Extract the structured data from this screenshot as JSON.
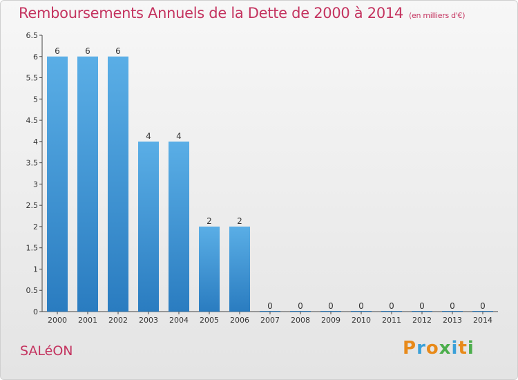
{
  "header": {
    "title": "Remboursements Annuels de la Dette de 2000 à 2014",
    "subtitle": "(en milliers d'€)"
  },
  "footer": {
    "place": "SALéON",
    "logo": "Proxiti"
  },
  "colors": {
    "title": "#c4335f",
    "bar_top": "#5aaee6",
    "bar_bottom": "#2a7cc0"
  },
  "chart_data": {
    "type": "bar",
    "title": "Remboursements Annuels de la Dette de 2000 à 2014",
    "subtitle": "(en milliers d'€)",
    "xlabel": "",
    "ylabel": "",
    "categories": [
      "2000",
      "2001",
      "2002",
      "2003",
      "2004",
      "2005",
      "2006",
      "2007",
      "2008",
      "2009",
      "2010",
      "2011",
      "2012",
      "2013",
      "2014"
    ],
    "values": [
      6,
      6,
      6,
      4,
      4,
      2,
      2,
      0,
      0,
      0,
      0,
      0,
      0,
      0,
      0
    ],
    "data_labels": [
      "6",
      "6",
      "6",
      "4",
      "4",
      "2",
      "2",
      "0",
      "0",
      "0",
      "0",
      "0",
      "0",
      "0",
      "0"
    ],
    "ylim": [
      0,
      6.5
    ],
    "yticks": [
      0,
      0.5,
      1,
      1.5,
      2,
      2.5,
      3,
      3.5,
      4,
      4.5,
      5,
      5.5,
      6,
      6.5
    ],
    "ytick_labels": [
      "0",
      "0.5",
      "1",
      "1.5",
      "2",
      "2.5",
      "3",
      "3.5",
      "4",
      "4.5",
      "5",
      "5.5",
      "6",
      "6.5"
    ],
    "grid": false,
    "legend": "none"
  }
}
